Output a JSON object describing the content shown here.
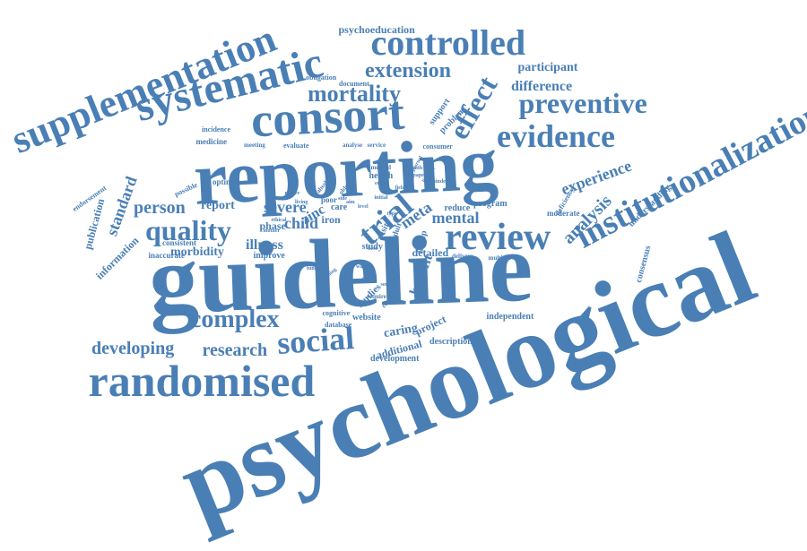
{
  "color": "#4a7fb5",
  "words": [
    {
      "text": "psychological"
    },
    {
      "text": "guideline"
    },
    {
      "text": "reporting"
    },
    {
      "text": "consort"
    },
    {
      "text": "randomised"
    },
    {
      "text": "systematic"
    },
    {
      "text": "supplementation"
    },
    {
      "text": "institutionalization"
    },
    {
      "text": "controlled"
    },
    {
      "text": "review"
    },
    {
      "text": "trial"
    },
    {
      "text": "evidence"
    },
    {
      "text": "effect"
    },
    {
      "text": "preventive"
    },
    {
      "text": "social"
    },
    {
      "text": "complex"
    },
    {
      "text": "quality"
    },
    {
      "text": "mortality"
    },
    {
      "text": "extension"
    },
    {
      "text": "analysis"
    },
    {
      "text": "mental"
    },
    {
      "text": "developing"
    },
    {
      "text": "research"
    },
    {
      "text": "person"
    },
    {
      "text": "severe"
    },
    {
      "text": "experience"
    },
    {
      "text": "standard"
    },
    {
      "text": "meta"
    },
    {
      "text": "difference"
    },
    {
      "text": "participant"
    },
    {
      "text": "psychoeducation"
    },
    {
      "text": "child"
    },
    {
      "text": "zinc"
    },
    {
      "text": "report"
    },
    {
      "text": "illness"
    },
    {
      "text": "morbidity"
    },
    {
      "text": "publication"
    },
    {
      "text": "information"
    },
    {
      "text": "benefit"
    },
    {
      "text": "caring"
    },
    {
      "text": "project"
    },
    {
      "text": "additional"
    },
    {
      "text": "development"
    },
    {
      "text": "description"
    },
    {
      "text": "independent"
    },
    {
      "text": "website"
    },
    {
      "text": "database"
    },
    {
      "text": "cognitive"
    },
    {
      "text": "studies"
    },
    {
      "text": "detailed"
    },
    {
      "text": "consensus"
    },
    {
      "text": "understanding"
    },
    {
      "text": "moderate"
    },
    {
      "text": "deficiency"
    },
    {
      "text": "program"
    },
    {
      "text": "reduce"
    },
    {
      "text": "group"
    },
    {
      "text": "study"
    },
    {
      "text": "visit"
    },
    {
      "text": "adult"
    },
    {
      "text": "care"
    },
    {
      "text": "poor"
    },
    {
      "text": "iron"
    },
    {
      "text": "phase"
    },
    {
      "text": "carer"
    },
    {
      "text": "improve"
    },
    {
      "text": "inaccurate"
    },
    {
      "text": "consistent"
    },
    {
      "text": "endorsement"
    },
    {
      "text": "medicine"
    },
    {
      "text": "incidence"
    },
    {
      "text": "meeting"
    },
    {
      "text": "evaluate"
    },
    {
      "text": "obligation"
    },
    {
      "text": "document"
    },
    {
      "text": "support"
    },
    {
      "text": "problem"
    },
    {
      "text": "consumer"
    },
    {
      "text": "service"
    },
    {
      "text": "analyse"
    },
    {
      "text": "health"
    },
    {
      "text": "method"
    },
    {
      "text": "optimal"
    },
    {
      "text": "possible"
    },
    {
      "text": "absolute"
    },
    {
      "text": "older"
    },
    {
      "text": "reader"
    },
    {
      "text": "living"
    },
    {
      "text": "ethical"
    },
    {
      "text": "mother"
    },
    {
      "text": "journal"
    },
    {
      "text": "practice"
    },
    {
      "text": "paper"
    },
    {
      "text": "hinder"
    },
    {
      "text": "multiple"
    },
    {
      "text": "delivery"
    },
    {
      "text": "require"
    },
    {
      "text": "source"
    },
    {
      "text": "resource"
    },
    {
      "text": "funding"
    },
    {
      "text": "ongoing"
    },
    {
      "text": "waste"
    },
    {
      "text": "policy"
    },
    {
      "text": "best"
    },
    {
      "text": "initial"
    },
    {
      "text": "type"
    },
    {
      "text": "level"
    },
    {
      "text": "aim"
    },
    {
      "text": "error"
    },
    {
      "text": "side"
    },
    {
      "text": "item"
    },
    {
      "text": "field"
    },
    {
      "text": "month"
    }
  ]
}
